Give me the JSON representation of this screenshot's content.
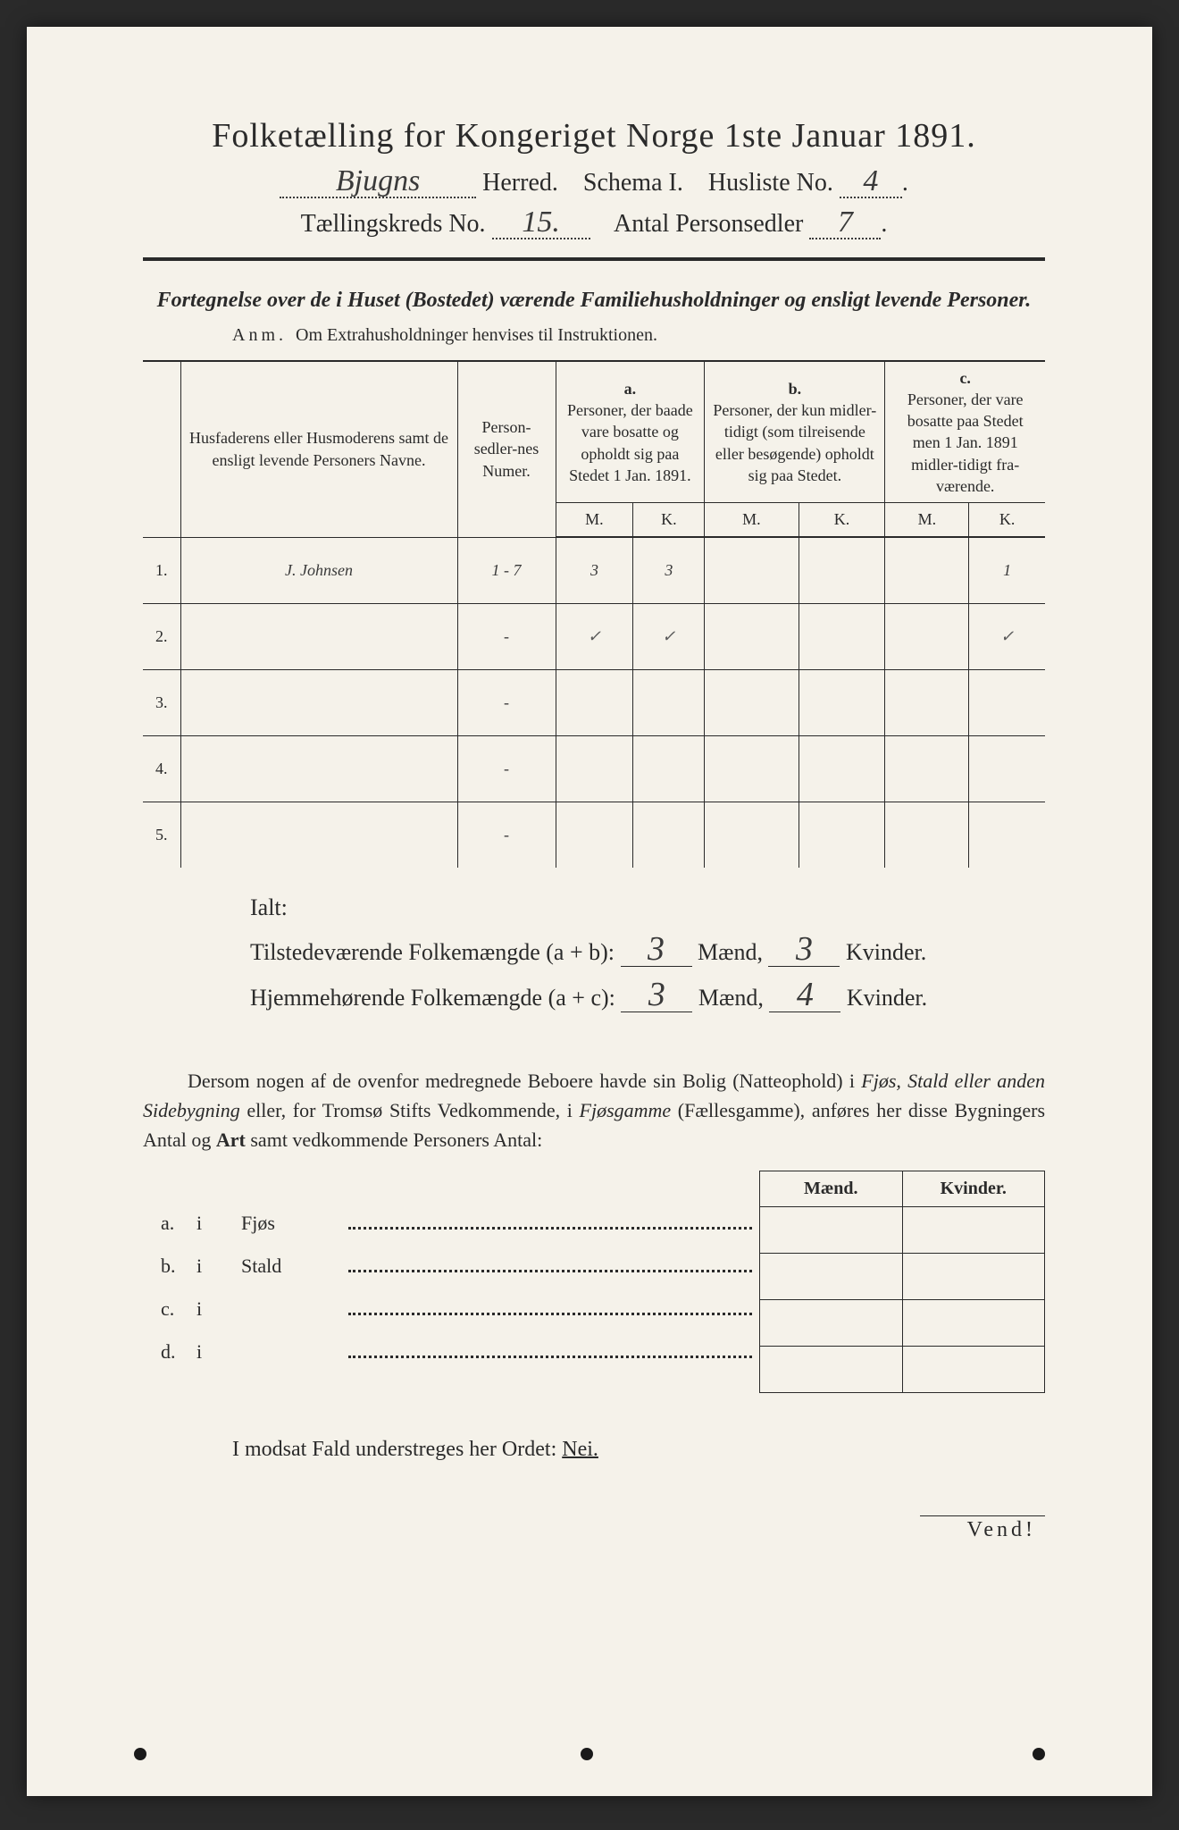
{
  "title": "Folketælling for Kongeriget Norge 1ste Januar 1891.",
  "header": {
    "herred_value": "Bjugns",
    "herred_label": "Herred.",
    "schema_label": "Schema I.",
    "husliste_label": "Husliste No.",
    "husliste_value": "4",
    "kreds_label": "Tællingskreds No.",
    "kreds_value": "15.",
    "antal_label": "Antal Personsedler",
    "antal_value": "7"
  },
  "subtitle": "Fortegnelse over de i Huset (Bostedet) værende Familiehusholdninger og ensligt levende Personer.",
  "anm_label": "Anm.",
  "anm_text": "Om Extrahusholdninger henvises til Instruktionen.",
  "table": {
    "col_name": "Husfaderens eller Husmoderens samt de ensligt levende Personers Navne.",
    "col_numer": "Person-sedler-nes Numer.",
    "group_a_label": "a.",
    "group_a_text": "Personer, der baade vare bosatte og opholdt sig paa Stedet 1 Jan. 1891.",
    "group_b_label": "b.",
    "group_b_text": "Personer, der kun midler-tidigt (som tilreisende eller besøgende) opholdt sig paa Stedet.",
    "group_c_label": "c.",
    "group_c_text": "Personer, der vare bosatte paa Stedet men 1 Jan. 1891 midler-tidigt fra-værende.",
    "m": "M.",
    "k": "K.",
    "rows": [
      {
        "n": "1.",
        "name": "J. Johnsen",
        "numer": "1 - 7",
        "am": "3",
        "ak": "3",
        "bm": "",
        "bk": "",
        "cm": "",
        "ck": "1"
      },
      {
        "n": "2.",
        "name": "",
        "numer": "-",
        "am": "✓",
        "ak": "✓",
        "bm": "",
        "bk": "",
        "cm": "",
        "ck": "✓"
      },
      {
        "n": "3.",
        "name": "",
        "numer": "-",
        "am": "",
        "ak": "",
        "bm": "",
        "bk": "",
        "cm": "",
        "ck": ""
      },
      {
        "n": "4.",
        "name": "",
        "numer": "-",
        "am": "",
        "ak": "",
        "bm": "",
        "bk": "",
        "cm": "",
        "ck": ""
      },
      {
        "n": "5.",
        "name": "",
        "numer": "-",
        "am": "",
        "ak": "",
        "bm": "",
        "bk": "",
        "cm": "",
        "ck": ""
      }
    ]
  },
  "ialt": {
    "label": "Ialt:",
    "line1_label": "Tilstedeværende Folkemængde (a + b):",
    "line2_label": "Hjemmehørende Folkemængde (a + c):",
    "maend": "Mænd,",
    "kvinder": "Kvinder.",
    "l1m": "3",
    "l1k": "3",
    "l2m": "3",
    "l2k": "4"
  },
  "paragraph_html": "Dersom nogen af de ovenfor medregnede Beboere havde sin Bolig (Natteophold) i Fjøs, Stald eller anden Sidebygning eller, for Tromsø Stifts Vedkommende, i Fjøsgamme (Fællesgamme), anføres her disse Bygningers Antal og Art samt vedkommende Personers Antal:",
  "mk": {
    "maend": "Mænd.",
    "kvinder": "Kvinder."
  },
  "abcd": [
    {
      "label": "a.",
      "i": "i",
      "word": "Fjøs"
    },
    {
      "label": "b.",
      "i": "i",
      "word": "Stald"
    },
    {
      "label": "c.",
      "i": "i",
      "word": ""
    },
    {
      "label": "d.",
      "i": "i",
      "word": ""
    }
  ],
  "nei_line_prefix": "I modsat Fald understreges her Ordet: ",
  "nei_word": "Nei.",
  "vend": "Vend!",
  "colors": {
    "paper": "#f5f2ea",
    "ink": "#2a2a2a",
    "hand": "#3a3a3a",
    "background": "#2a2a2a"
  }
}
